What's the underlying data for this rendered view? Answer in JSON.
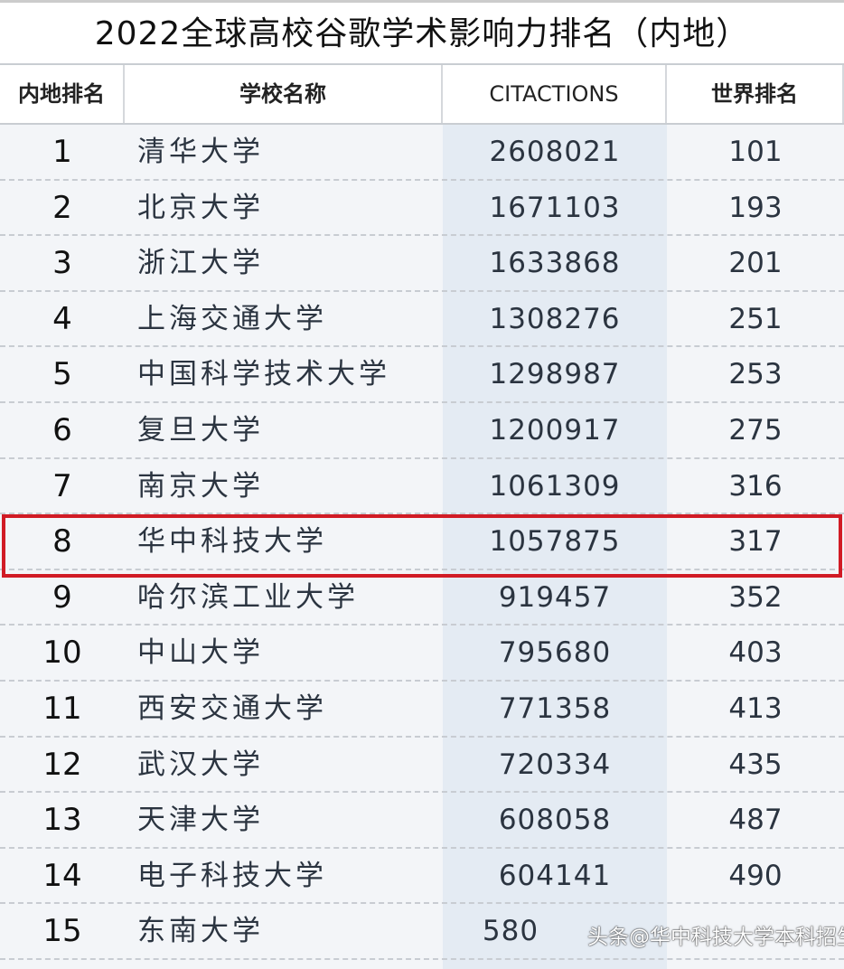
{
  "title": "2022全球高校谷歌学术影响力排名（内地）",
  "headers": [
    "内地排名",
    "学校名称",
    "CITACTIONS",
    "世界排名"
  ],
  "rows": [
    {
      "rank": "1",
      "name": "清华大学",
      "citations": "2608021",
      "world": "101"
    },
    {
      "rank": "2",
      "name": "北京大学",
      "citations": "1671103",
      "world": "193"
    },
    {
      "rank": "3",
      "name": "浙江大学",
      "citations": "1633868",
      "world": "201"
    },
    {
      "rank": "4",
      "name": "上海交通大学",
      "citations": "1308276",
      "world": "251"
    },
    {
      "rank": "5",
      "name": "中国科学技术大学",
      "citations": "1298987",
      "world": "253"
    },
    {
      "rank": "6",
      "name": "复旦大学",
      "citations": "1200917",
      "world": "275"
    },
    {
      "rank": "7",
      "name": "南京大学",
      "citations": "1061309",
      "world": "316"
    },
    {
      "rank": "8",
      "name": "华中科技大学",
      "citations": "1057875",
      "world": "317"
    },
    {
      "rank": "9",
      "name": "哈尔滨工业大学",
      "citations": "919457",
      "world": "352"
    },
    {
      "rank": "10",
      "name": "中山大学",
      "citations": "795680",
      "world": "403"
    },
    {
      "rank": "11",
      "name": "西安交通大学",
      "citations": "771358",
      "world": "413"
    },
    {
      "rank": "12",
      "name": "武汉大学",
      "citations": "720334",
      "world": "435"
    },
    {
      "rank": "13",
      "name": "天津大学",
      "citations": "608058",
      "world": "487"
    },
    {
      "rank": "14",
      "name": "电子科技大学",
      "citations": "604141",
      "world": "490"
    },
    {
      "rank": "15",
      "name": "东南大学",
      "citations": "580",
      "world": ""
    }
  ],
  "highlight_color": "#d11b25",
  "watermark": "头条@华中科技大学本科招生"
}
